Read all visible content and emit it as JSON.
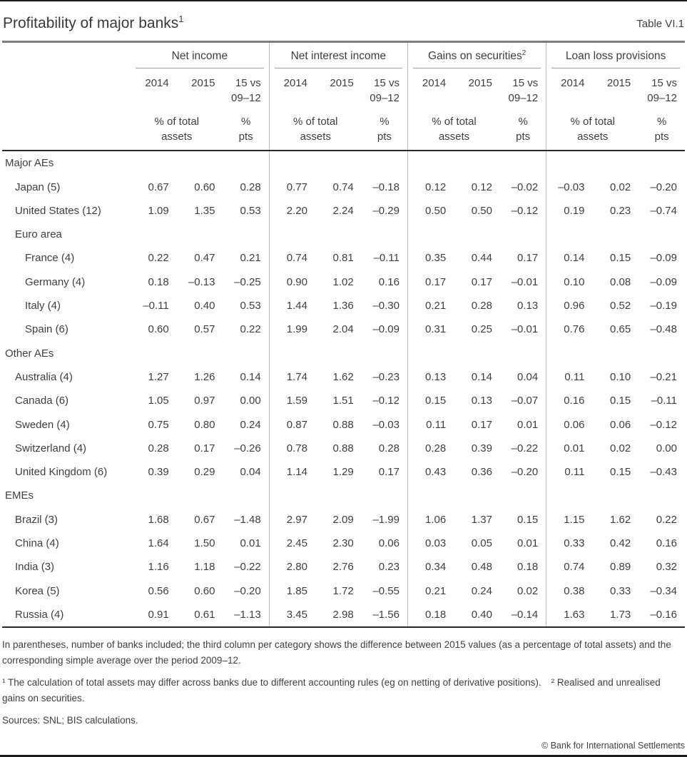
{
  "page": {
    "title": "Profitability of major banks",
    "title_sup": "1",
    "table_number": "Table VI.1",
    "copyright": "© Bank for International Settlements"
  },
  "table": {
    "groups": [
      {
        "label": "Net income",
        "sup": ""
      },
      {
        "label": "Net interest income",
        "sup": ""
      },
      {
        "label": "Gains on securities",
        "sup": "2"
      },
      {
        "label": "Loan loss provisions",
        "sup": ""
      }
    ],
    "year_headers": [
      "2014",
      "2015",
      "15 vs\n09–12"
    ],
    "unit_headers": [
      "% of total\nassets",
      "%\npts"
    ],
    "rows": [
      {
        "label": "Major AEs",
        "indent": 0,
        "values": []
      },
      {
        "label": "Japan (5)",
        "indent": 1,
        "values": [
          "0.67",
          "0.60",
          "0.28",
          "0.77",
          "0.74",
          "–0.18",
          "0.12",
          "0.12",
          "–0.02",
          "–0.03",
          "0.02",
          "–0.20"
        ]
      },
      {
        "label": "United States (12)",
        "indent": 1,
        "values": [
          "1.09",
          "1.35",
          "0.53",
          "2.20",
          "2.24",
          "–0.29",
          "0.50",
          "0.50",
          "–0.12",
          "0.19",
          "0.23",
          "–0.74"
        ]
      },
      {
        "label": "Euro area",
        "indent": 1,
        "values": []
      },
      {
        "label": "France (4)",
        "indent": 2,
        "values": [
          "0.22",
          "0.47",
          "0.21",
          "0.74",
          "0.81",
          "–0.11",
          "0.35",
          "0.44",
          "0.17",
          "0.14",
          "0.15",
          "–0.09"
        ]
      },
      {
        "label": "Germany (4)",
        "indent": 2,
        "values": [
          "0.18",
          "–0.13",
          "–0.25",
          "0.90",
          "1.02",
          "0.16",
          "0.17",
          "0.17",
          "–0.01",
          "0.10",
          "0.08",
          "–0.09"
        ]
      },
      {
        "label": "Italy (4)",
        "indent": 2,
        "values": [
          "–0.11",
          "0.40",
          "0.53",
          "1.44",
          "1.36",
          "–0.30",
          "0.21",
          "0.28",
          "0.13",
          "0.96",
          "0.52",
          "–0.19"
        ]
      },
      {
        "label": "Spain (6)",
        "indent": 2,
        "values": [
          "0.60",
          "0.57",
          "0.22",
          "1.99",
          "2.04",
          "–0.09",
          "0.31",
          "0.25",
          "–0.01",
          "0.76",
          "0.65",
          "–0.48"
        ]
      },
      {
        "label": "Other AEs",
        "indent": 0,
        "values": []
      },
      {
        "label": "Australia (4)",
        "indent": 1,
        "values": [
          "1.27",
          "1.26",
          "0.14",
          "1.74",
          "1.62",
          "–0.23",
          "0.13",
          "0.14",
          "0.04",
          "0.11",
          "0.10",
          "–0.21"
        ]
      },
      {
        "label": "Canada (6)",
        "indent": 1,
        "values": [
          "1.05",
          "0.97",
          "0.00",
          "1.59",
          "1.51",
          "–0.12",
          "0.15",
          "0.13",
          "–0.07",
          "0.16",
          "0.15",
          "–0.11"
        ]
      },
      {
        "label": "Sweden (4)",
        "indent": 1,
        "values": [
          "0.75",
          "0.80",
          "0.24",
          "0.87",
          "0.88",
          "–0.03",
          "0.11",
          "0.17",
          "0.01",
          "0.06",
          "0.06",
          "–0.12"
        ]
      },
      {
        "label": "Switzerland (4)",
        "indent": 1,
        "values": [
          "0.28",
          "0.17",
          "–0.26",
          "0.78",
          "0.88",
          "0.28",
          "0.28",
          "0.39",
          "–0.22",
          "0.01",
          "0.02",
          "0.00"
        ]
      },
      {
        "label": "United Kingdom (6)",
        "indent": 1,
        "values": [
          "0.39",
          "0.29",
          "0.04",
          "1.14",
          "1.29",
          "0.17",
          "0.43",
          "0.36",
          "–0.20",
          "0.11",
          "0.15",
          "–0.43"
        ]
      },
      {
        "label": "EMEs",
        "indent": 0,
        "values": []
      },
      {
        "label": "Brazil (3)",
        "indent": 1,
        "values": [
          "1.68",
          "0.67",
          "–1.48",
          "2.97",
          "2.09",
          "–1.99",
          "1.06",
          "1.37",
          "0.15",
          "1.15",
          "1.62",
          "0.22"
        ]
      },
      {
        "label": "China (4)",
        "indent": 1,
        "values": [
          "1.64",
          "1.50",
          "0.01",
          "2.45",
          "2.30",
          "0.06",
          "0.03",
          "0.05",
          "0.01",
          "0.33",
          "0.42",
          "0.16"
        ]
      },
      {
        "label": "India (3)",
        "indent": 1,
        "values": [
          "1.16",
          "1.18",
          "–0.22",
          "2.80",
          "2.76",
          "0.23",
          "0.34",
          "0.48",
          "0.18",
          "0.74",
          "0.89",
          "0.32"
        ]
      },
      {
        "label": "Korea (5)",
        "indent": 1,
        "values": [
          "0.56",
          "0.60",
          "–0.20",
          "1.85",
          "1.72",
          "–0.55",
          "0.21",
          "0.24",
          "0.02",
          "0.38",
          "0.33",
          "–0.34"
        ]
      },
      {
        "label": "Russia (4)",
        "indent": 1,
        "values": [
          "0.91",
          "0.61",
          "–1.13",
          "3.45",
          "2.98",
          "–1.56",
          "0.18",
          "0.40",
          "–0.14",
          "1.63",
          "1.73",
          "–0.16"
        ]
      }
    ]
  },
  "footnotes": {
    "note": "In parentheses, number of banks included; the third column per category shows the difference between 2015 values (as a percentage of total assets) and the corresponding simple average over the period 2009–12.",
    "numbered": [
      "¹  The calculation of total assets may differ across banks due to different accounting rules (eg on netting of derivative positions).",
      "²  Realised and unrealised gains on securities."
    ],
    "sources": "Sources: SNL; BIS calculations."
  }
}
